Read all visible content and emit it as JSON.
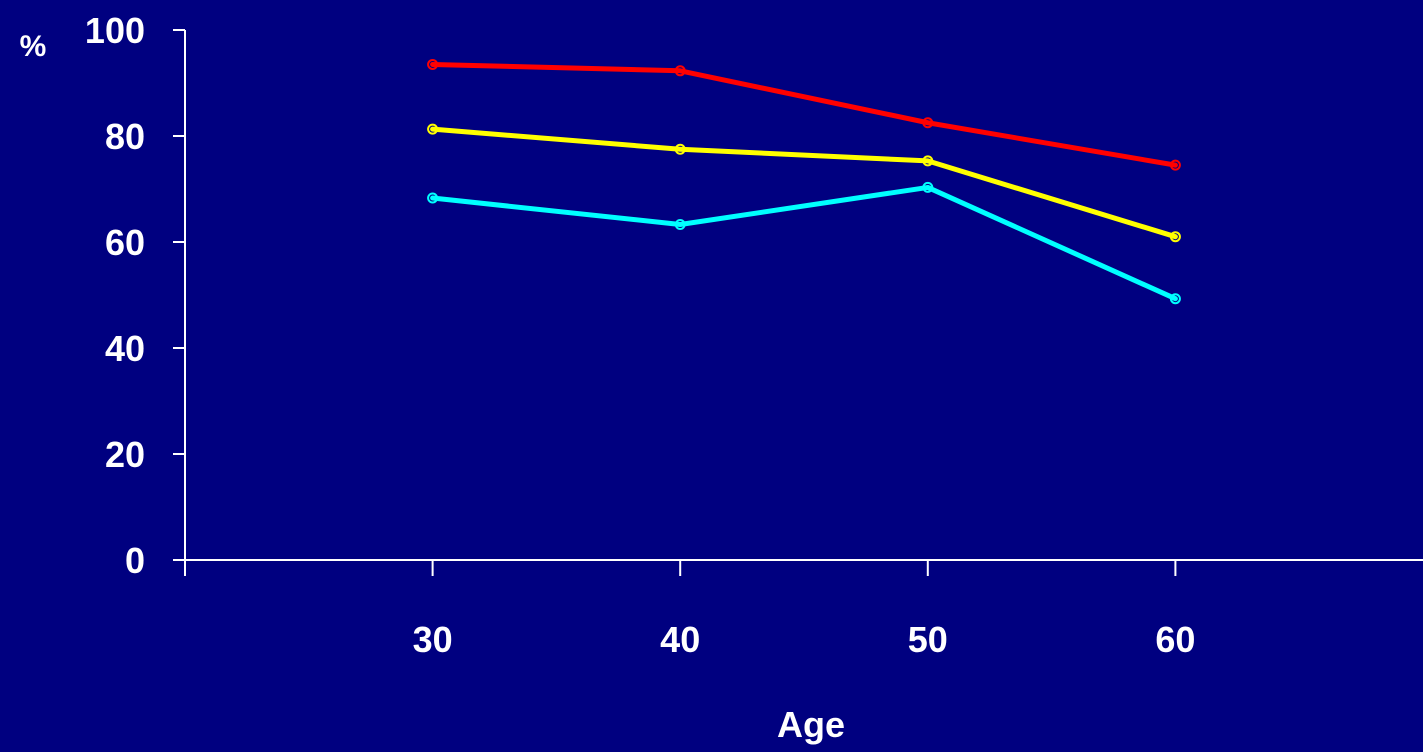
{
  "chart_data": {
    "type": "line",
    "title": "",
    "xlabel": "Age",
    "ylabel": "%",
    "x": [
      30,
      40,
      50,
      60
    ],
    "xlim": [
      20,
      70
    ],
    "ylim": [
      0,
      100
    ],
    "yticks": [
      0,
      20,
      40,
      60,
      80,
      100
    ],
    "xticks": [
      30,
      40,
      50,
      60
    ],
    "grid": false,
    "legend": "none",
    "series": [
      {
        "color": "#ff0000",
        "values": [
          93.5,
          92.3,
          82.5,
          74.5
        ]
      },
      {
        "color": "#ffff00",
        "values": [
          81.3,
          77.5,
          75.3,
          61.0
        ]
      },
      {
        "color": "#00ffff",
        "values": [
          68.3,
          63.3,
          70.3,
          49.3
        ]
      }
    ]
  },
  "colors": {
    "background": "#000080",
    "axis": "#ffffff"
  }
}
